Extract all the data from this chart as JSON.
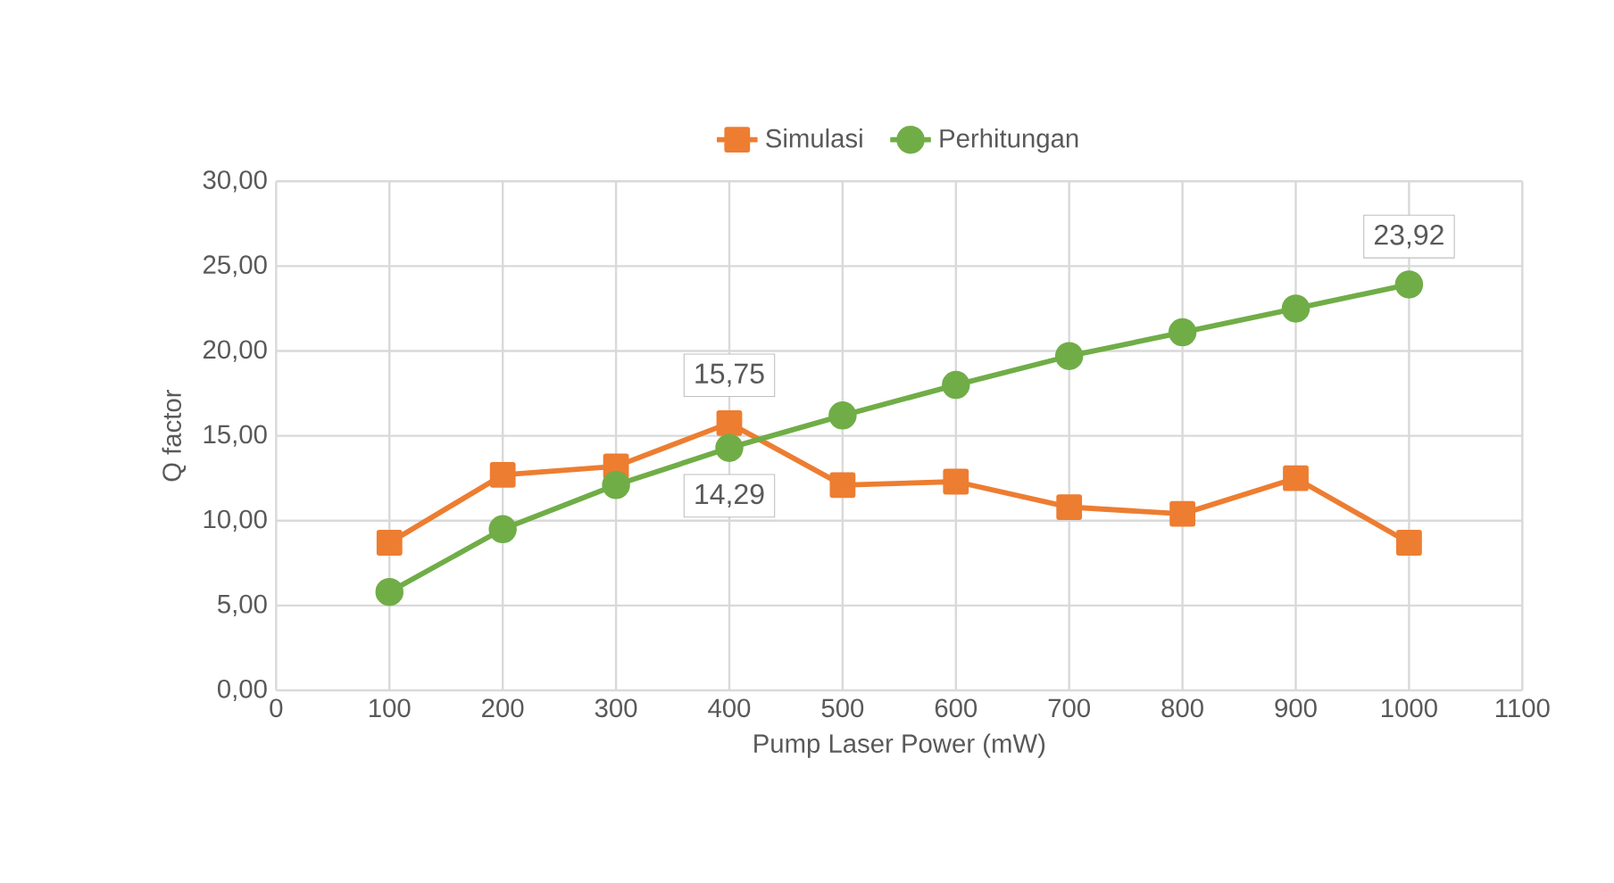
{
  "chart_data": {
    "type": "line",
    "xlabel": "Pump Laser Power (mW)",
    "ylabel": "Q factor",
    "x": [
      100,
      200,
      300,
      400,
      500,
      600,
      700,
      800,
      900,
      1000
    ],
    "series": [
      {
        "name": "Simulasi",
        "color": "#ed7d31",
        "marker": "square",
        "values": [
          8.7,
          12.7,
          13.2,
          15.75,
          12.1,
          12.3,
          10.8,
          10.4,
          12.5,
          8.7
        ],
        "value_labels": [
          null,
          null,
          null,
          "15,75",
          null,
          null,
          null,
          null,
          null,
          null
        ]
      },
      {
        "name": "Perhitungan",
        "color": "#70ad47",
        "marker": "circle",
        "values": [
          5.8,
          9.5,
          12.1,
          14.29,
          16.2,
          18.0,
          19.7,
          21.1,
          22.5,
          23.92
        ],
        "value_labels": [
          null,
          null,
          null,
          "14,29",
          null,
          null,
          null,
          null,
          null,
          "23,92"
        ]
      }
    ],
    "xlim": [
      0,
      1100
    ],
    "xticks": [
      0,
      100,
      200,
      300,
      400,
      500,
      600,
      700,
      800,
      900,
      1000,
      1100
    ],
    "ylim": [
      0,
      30
    ],
    "yticks": [
      {
        "value": 0,
        "label": "0,00"
      },
      {
        "value": 5,
        "label": "5,00"
      },
      {
        "value": 10,
        "label": "10,00"
      },
      {
        "value": 15,
        "label": "15,00"
      },
      {
        "value": 20,
        "label": "20,00"
      },
      {
        "value": 25,
        "label": "25,00"
      },
      {
        "value": 30,
        "label": "30,00"
      }
    ],
    "grid": true,
    "legend": "top",
    "line_style": "solid"
  }
}
